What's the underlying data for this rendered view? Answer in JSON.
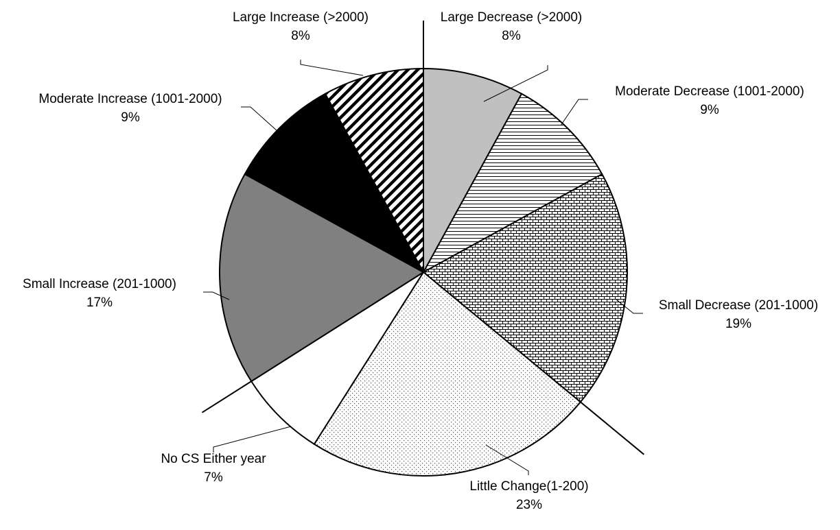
{
  "chart_data": {
    "type": "pie",
    "start": "top",
    "direction": "clockwise",
    "slices": [
      {
        "name": "Large Decrease (>2000)",
        "value": 8,
        "value_label": "8%",
        "fill": "pat-light-gray"
      },
      {
        "name": "Moderate Decrease (1001-2000)",
        "value": 9,
        "value_label": "9%",
        "fill": "pat-horizontal"
      },
      {
        "name": "Small Decrease (201-1000)",
        "value": 19,
        "value_label": "19%",
        "fill": "pat-brick"
      },
      {
        "name": "Little Change(1-200)",
        "value": 23,
        "value_label": "23%",
        "fill": "pat-dots"
      },
      {
        "name": "No CS Either year",
        "value": 7,
        "value_label": "7%",
        "fill": "pat-white"
      },
      {
        "name": "Small Increase (201-1000)",
        "value": 17,
        "value_label": "17%",
        "fill": "pat-gray"
      },
      {
        "name": "Moderate Increase (1001-2000)",
        "value": 9,
        "value_label": "9%",
        "fill": "pat-black"
      },
      {
        "name": "Large Increase (>2000)",
        "value": 8,
        "value_label": "8%",
        "fill": "pat-diagonal"
      }
    ],
    "colors": {
      "light_gray": "#c0c0c0",
      "gray": "#808080",
      "black": "#000000",
      "white": "#ffffff"
    }
  }
}
